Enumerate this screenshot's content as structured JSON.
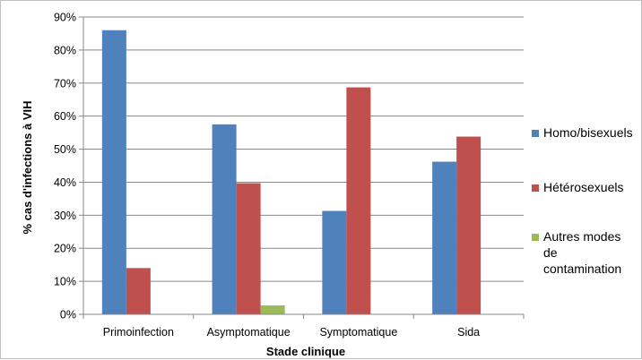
{
  "chart_data": {
    "type": "bar",
    "title": "",
    "xlabel": "Stade clinique",
    "ylabel": "% cas d'infections à VIH",
    "ylim": [
      0,
      90
    ],
    "yticks": [
      "0%",
      "10%",
      "20%",
      "30%",
      "40%",
      "50%",
      "60%",
      "70%",
      "80%",
      "90%"
    ],
    "categories": [
      "Primoinfection",
      "Asymptomatique",
      "Symptomatique",
      "Sida"
    ],
    "grid": true,
    "legend_position": "right",
    "series": [
      {
        "name": "Homo/bisexuels",
        "color": "#4f81bd",
        "values": [
          86,
          57.5,
          31.3,
          46.2
        ]
      },
      {
        "name": "Hétérosexuels",
        "color": "#c0504d",
        "values": [
          14,
          39.7,
          68.7,
          53.8
        ]
      },
      {
        "name": "Autres modes de contamination",
        "color": "#9bbb59",
        "values": [
          0,
          2.7,
          0,
          0
        ]
      }
    ]
  },
  "legend": {
    "items": [
      {
        "lines": [
          "Homo/bisexuels"
        ]
      },
      {
        "lines": [
          "Hétérosexuels"
        ]
      },
      {
        "lines": [
          "Autres modes",
          "de",
          "contamination"
        ]
      }
    ]
  }
}
